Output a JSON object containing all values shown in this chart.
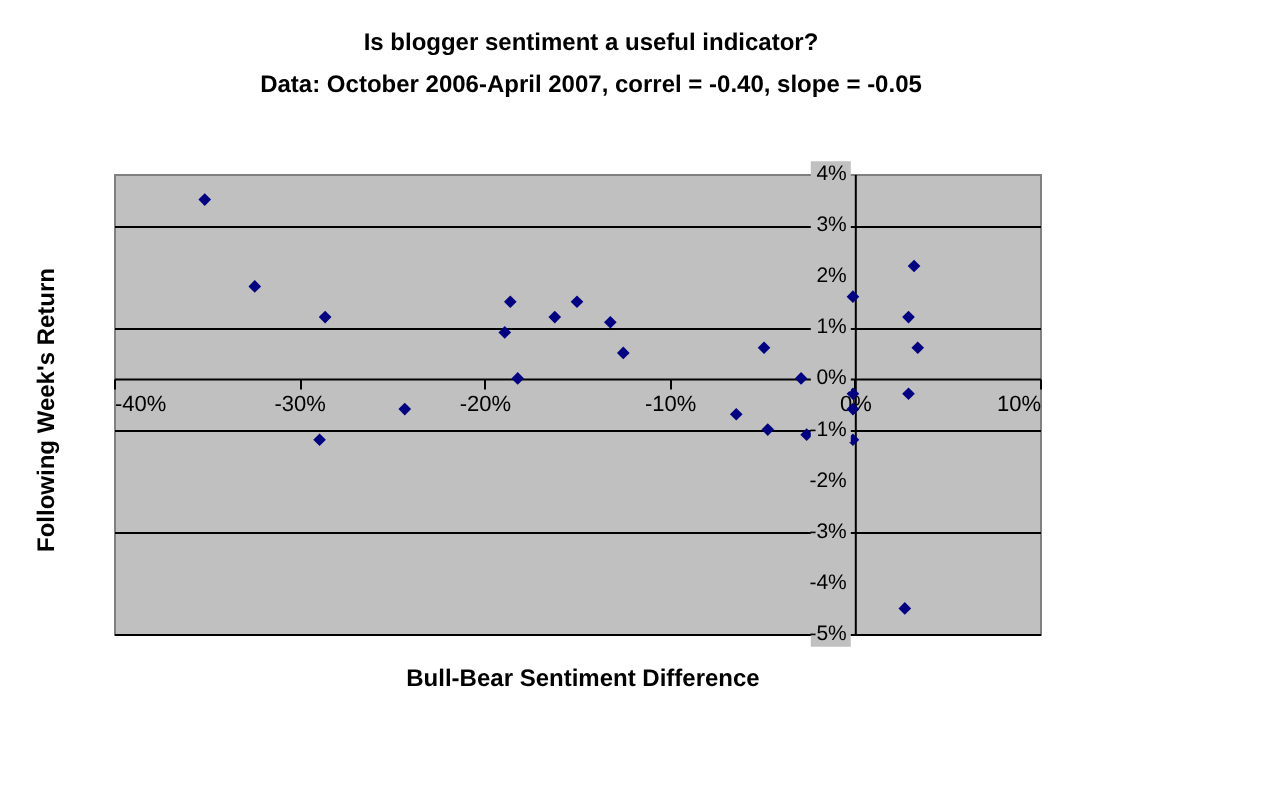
{
  "chart_data": {
    "type": "scatter",
    "title": "Is blogger sentiment a useful indicator?",
    "subtitle": "Data:  October 2006-April 2007, correl = -0.40, slope = -0.05",
    "xlabel": "Bull-Bear Sentiment Difference",
    "ylabel": "Following Week's Return",
    "series": [
      {
        "color": "#000080",
        "x": [
          -35.1,
          -32.4,
          -28.6,
          -28.9,
          -24.3,
          -18.9,
          -18.6,
          -18.2,
          -16.2,
          -15.0,
          -13.2,
          -12.5,
          -6.4,
          -4.9,
          -4.7,
          -2.9,
          -2.6,
          -0.1,
          -0.1,
          -0.1,
          -0.1,
          3.2,
          2.9,
          3.4,
          2.9,
          2.7
        ],
        "values": [
          3.5,
          1.8,
          1.2,
          -1.2,
          -0.6,
          0.9,
          1.5,
          0.0,
          1.2,
          1.5,
          1.1,
          0.5,
          -0.7,
          0.6,
          -1.0,
          0.0,
          -1.1,
          1.6,
          -0.3,
          -0.6,
          -1.2,
          2.2,
          1.2,
          0.6,
          -0.3,
          -4.5
        ]
      }
    ],
    "xlim": [
      -40,
      10
    ],
    "xticks": [
      {
        "value": -40,
        "label": "-40%"
      },
      {
        "value": -30,
        "label": "-30%"
      },
      {
        "value": -20,
        "label": "-20%"
      },
      {
        "value": -10,
        "label": "-10%"
      },
      {
        "value": 0,
        "label": "0%"
      },
      {
        "value": 10,
        "label": "10%"
      }
    ],
    "ylim": [
      -5,
      4
    ],
    "yticks": [
      {
        "value": -5,
        "label": "-5%"
      },
      {
        "value": -4,
        "label": "-4%"
      },
      {
        "value": -3,
        "label": "-3%"
      },
      {
        "value": -2,
        "label": "-2%"
      },
      {
        "value": -1,
        "label": "-1%"
      },
      {
        "value": 0,
        "label": "0%"
      },
      {
        "value": 1,
        "label": "1%"
      },
      {
        "value": 2,
        "label": "2%"
      },
      {
        "value": 3,
        "label": "3%"
      },
      {
        "value": 4,
        "label": "4%"
      }
    ],
    "grid": "y",
    "marker": "diamond"
  }
}
